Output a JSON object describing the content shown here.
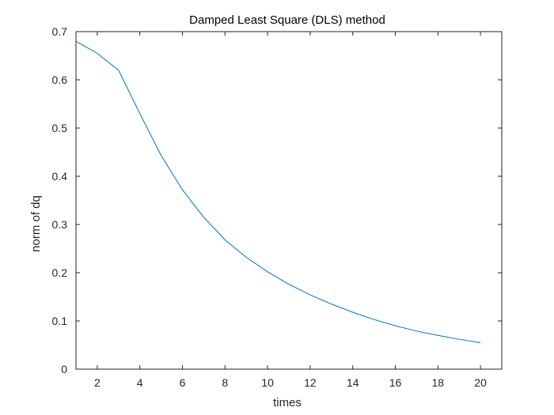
{
  "chart_data": {
    "type": "line",
    "title": "Damped Least Square (DLS) method",
    "xlabel": "times",
    "ylabel": "norm of dq",
    "xlim": [
      1,
      21
    ],
    "ylim": [
      0,
      0.7
    ],
    "xticks": [
      2,
      4,
      6,
      8,
      10,
      12,
      14,
      16,
      18,
      20
    ],
    "xtick_labels": [
      "2",
      "4",
      "6",
      "8",
      "10",
      "12",
      "14",
      "16",
      "18",
      "20"
    ],
    "yticks": [
      0,
      0.1,
      0.2,
      0.3,
      0.4,
      0.5,
      0.6,
      0.7
    ],
    "ytick_labels": [
      "0",
      "0.1",
      "0.2",
      "0.3",
      "0.4",
      "0.5",
      "0.6",
      "0.7"
    ],
    "grid": false,
    "series": [
      {
        "color": "#0072BD",
        "x": [
          1,
          2,
          3,
          4,
          5,
          6,
          7,
          8,
          9,
          10,
          11,
          12,
          13,
          14,
          15,
          16,
          17,
          18,
          19,
          20
        ],
        "y": [
          0.68,
          0.655,
          0.62,
          0.53,
          0.443,
          0.372,
          0.315,
          0.268,
          0.232,
          0.202,
          0.176,
          0.154,
          0.135,
          0.118,
          0.103,
          0.09,
          0.079,
          0.07,
          0.062,
          0.055
        ]
      }
    ]
  }
}
